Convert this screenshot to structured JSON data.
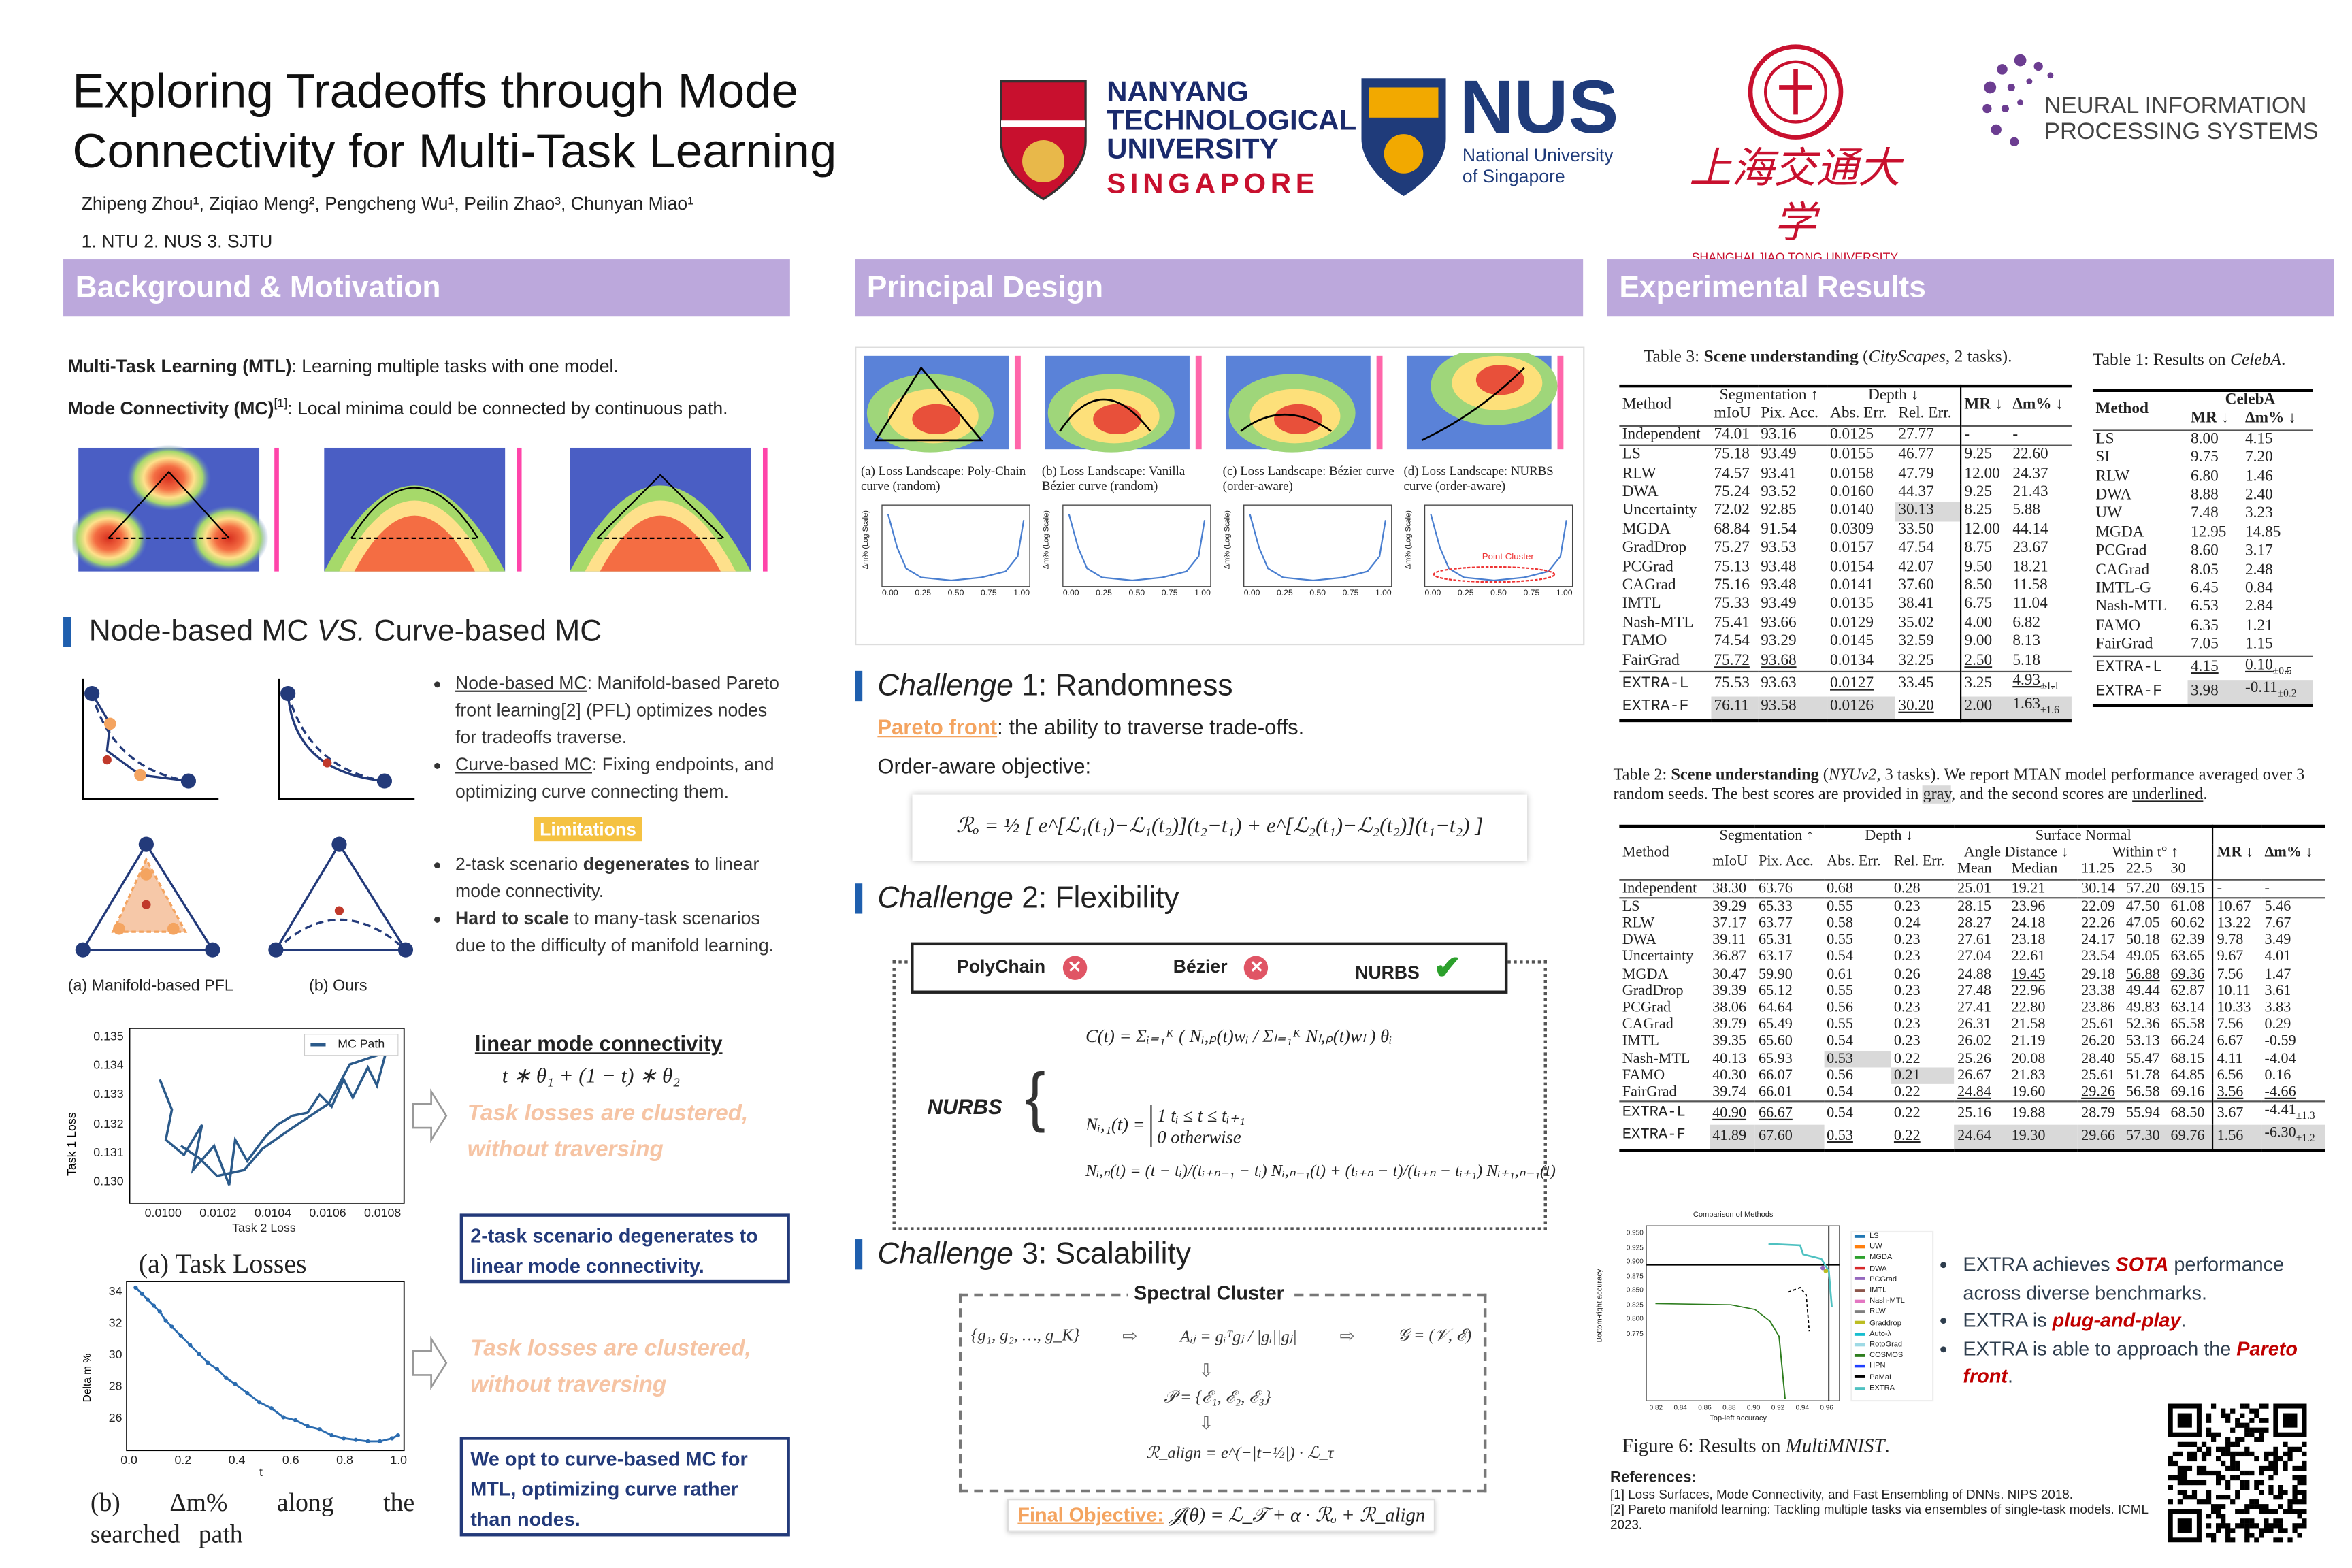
{
  "header": {
    "title_line1": "Exploring Tradeoffs through Mode",
    "title_line2": "Connectivity for Multi-Task Learning",
    "authors": "Zhipeng Zhou¹, Ziqiao Meng², Pengcheng Wu¹, Peilin Zhao³, Chunyan Miao¹",
    "affiliations": "1. NTU   2. NUS  3. SJTU",
    "logos": {
      "ntu": [
        "NANYANG",
        "TECHNOLOGICAL",
        "UNIVERSITY",
        "SINGAPORE"
      ],
      "nus": [
        "NUS",
        "National University",
        "of Singapore"
      ],
      "sjtu": [
        "上海交通大学",
        "SHANGHAI JIAO TONG UNIVERSITY"
      ],
      "neurips": [
        "NEURAL INFORMATION",
        "PROCESSING SYSTEMS"
      ]
    }
  },
  "sections": {
    "background": "Background & Motivation",
    "design": "Principal Design",
    "results": "Experimental Results"
  },
  "background": {
    "mtl_term": "Multi-Task Learning (MTL)",
    "mtl_def": ": Learning multiple tasks with one model.",
    "mc_term": "Mode Connectivity (MC)",
    "mc_ref": "[1]",
    "mc_def": ": Local minima could be connected by continuous path.",
    "subheading_a": "Node-based MC ",
    "subheading_vs": "VS.",
    "subheading_b": " Curve-based MC",
    "bullets": [
      {
        "term": "Node-based MC",
        "text": ": Manifold-based Pareto front learning[2] (PFL) optimizes nodes for tradeoffs traverse."
      },
      {
        "term": "Curve-based MC",
        "text": ": Fixing endpoints, and optimizing curve connecting them."
      }
    ],
    "limitations_label": "Limitations",
    "limitations": [
      {
        "pre": "2-task scenario ",
        "bold": "degenerates",
        "post": " to linear mode connectivity."
      },
      {
        "pre": "",
        "bold": "Hard to scale",
        "post": " to many-task scenarios due to the difficulty of manifold learning."
      }
    ],
    "diagram_captions": [
      "(a) Manifold-based PFL",
      "(b) Ours"
    ],
    "linear_mc_title": "linear mode connectivity",
    "linear_mc_formula": "t ∗ θ₁ + (1 − t) ∗ θ₂",
    "clustered_1": "Task losses are clustered,",
    "clustered_2": "without traversing",
    "box1": "2-task scenario degenerates to linear mode connectivity.",
    "box2": "We opt to curve-based MC for MTL, optimizing curve rather than nodes.",
    "task_loss_chart": {
      "caption": "(a) Task Losses",
      "legend": "MC Path",
      "xlabel": "Task 2 Loss",
      "ylabel": "Task 1 Loss",
      "xticks": [
        "0.0100",
        "0.0102",
        "0.0104",
        "0.0106",
        "0.0108"
      ],
      "yticks": [
        "0.135",
        "0.134",
        "0.133",
        "0.132",
        "0.131",
        "0.130"
      ]
    },
    "delta_chart": {
      "caption": "(b)   Δm%   along   the searched path",
      "xlabel": "t",
      "ylabel": "Delta m %",
      "xticks": [
        "0.0",
        "0.2",
        "0.4",
        "0.6",
        "0.8",
        "1.0"
      ],
      "yticks": [
        "34",
        "32",
        "30",
        "28",
        "26"
      ]
    }
  },
  "design": {
    "fig_captions": [
      "(a) Loss Landscape: Poly-Chain curve (random)",
      "(b) Loss Landscape: Vanilla Bézier curve (random)",
      "(c) Loss Landscape: Bézier curve (order-aware)",
      "(d) Loss Landscape: NURBS curve (order-aware)"
    ],
    "point_cluster_label": "Point Cluster",
    "mini_ylabel": "Δm% (Log Scale)",
    "mini_xticks": [
      "0.00",
      "0.25",
      "0.50",
      "0.75",
      "1.00"
    ],
    "challenge1_word": "Challenge",
    "challenge1": " 1: Randomness",
    "pareto_term": "Pareto front",
    "pareto_def": ": the ability to traverse trade-offs.",
    "order_aware": "Order-aware objective:",
    "order_formula": "ℛₒ = ½ [ e^[ℒ₁(t₁)−ℒ₁(t₂)](t₂−t₁) + e^[ℒ₂(t₁)−ℒ₂(t₂)](t₁−t₂) ]",
    "challenge2": " 2: Flexibility",
    "curve_types": [
      {
        "name": "PolyChain",
        "ok": false
      },
      {
        "name": "Bézier",
        "ok": false
      },
      {
        "name": "NURBS",
        "ok": true
      }
    ],
    "nurbs_label": "NURBS",
    "nurbs_f1": "C(t) = Σᵢ₌₁ᴷ ( Nᵢ,ₚ(t)wᵢ / Σₗ₌₁ᴷ Nₗ,ₚ(t)wₗ ) θᵢ",
    "nurbs_f2a": "Nᵢ,₁(t) = ",
    "nurbs_f2b": "1    tᵢ ≤ t ≤ tᵢ₊₁",
    "nurbs_f2c": "0    otherwise",
    "nurbs_f3": "Nᵢ,ₙ(t) = (t − tᵢ)/(tᵢ₊ₙ₋₁ − tᵢ) Nᵢ,ₙ₋₁(t) + (tᵢ₊ₙ − t)/(tᵢ₊ₙ − tᵢ₊₁) Nᵢ₊₁,ₙ₋₁(t)",
    "challenge3": " 3: Scalability",
    "spectral_title": "Spectral Cluster",
    "spec_g": "{g₁, g₂, …, g_K}",
    "spec_a": "Aᵢⱼ = gᵢᵀgⱼ / |gᵢ||gⱼ|",
    "spec_graph": "𝒢 = (𝒱, ℰ)",
    "spec_p": "𝒫 = {ℰ₁, ℰ₂, ℰ₃}",
    "spec_r": "ℛ_align = e^(−|t−½|) · ℒ_τ",
    "final_label": "Final Objective:",
    "final_formula": "𝒥(θ) = ℒ_𝒯 + α · ℛₒ + ℛ_align"
  },
  "table3": {
    "caption_pre": "Table 3: ",
    "caption_bold": "Scene understanding",
    "caption_it": "CityScapes",
    "caption_post": ", 2 tasks).",
    "h_method": "Method",
    "h_seg": "Segmentation ↑",
    "h_depth": "Depth ↓",
    "h_mr": "MR ↓",
    "h_dm": "Δm% ↓",
    "sub": [
      "mIoU",
      "Pix. Acc.",
      "Abs. Err.",
      "Rel. Err."
    ],
    "independent": [
      "Independent",
      "74.01",
      "93.16",
      "0.0125",
      "27.77",
      "-",
      "-"
    ],
    "rows": [
      [
        "LS",
        "75.18",
        "93.49",
        "0.0155",
        "46.77",
        "9.25",
        "22.60"
      ],
      [
        "RLW",
        "74.57",
        "93.41",
        "0.0158",
        "47.79",
        "12.00",
        "24.37"
      ],
      [
        "DWA",
        "75.24",
        "93.52",
        "0.0160",
        "44.37",
        "9.25",
        "21.43"
      ],
      [
        "Uncertainty",
        "72.02",
        "92.85",
        "0.0140",
        "30.13",
        "8.25",
        "5.88"
      ],
      [
        "MGDA",
        "68.84",
        "91.54",
        "0.0309",
        "33.50",
        "12.00",
        "44.14"
      ],
      [
        "GradDrop",
        "75.27",
        "93.53",
        "0.0157",
        "47.54",
        "8.75",
        "23.67"
      ],
      [
        "PCGrad",
        "75.13",
        "93.48",
        "0.0154",
        "42.07",
        "9.50",
        "18.21"
      ],
      [
        "CAGrad",
        "75.16",
        "93.48",
        "0.0141",
        "37.60",
        "8.50",
        "11.58"
      ],
      [
        "IMTL",
        "75.33",
        "93.49",
        "0.0135",
        "38.41",
        "6.75",
        "11.04"
      ],
      [
        "Nash-MTL",
        "75.41",
        "93.66",
        "0.0129",
        "35.02",
        "4.00",
        "6.82"
      ],
      [
        "FAMO",
        "74.54",
        "93.29",
        "0.0145",
        "32.59",
        "9.00",
        "8.13"
      ],
      [
        "FairGrad",
        "75.72",
        "93.68",
        "0.0134",
        "32.25",
        "2.50",
        "5.18"
      ]
    ],
    "ours": [
      [
        "EXTRA-L",
        "75.53",
        "93.63",
        "0.0127",
        "33.45",
        "3.25",
        "4.93",
        "±1.1"
      ],
      [
        "EXTRA-F",
        "76.11",
        "93.58",
        "0.0126",
        "30.20",
        "2.00",
        "1.63",
        "±1.6"
      ]
    ]
  },
  "table1": {
    "caption_pre": "Table 1: Results on ",
    "caption_it": "CelebA",
    "caption_post": ".",
    "h_method": "Method",
    "h_group": "CelebA",
    "h_mr": "MR ↓",
    "h_dm": "Δm% ↓",
    "rows": [
      [
        "LS",
        "8.00",
        "4.15"
      ],
      [
        "SI",
        "9.75",
        "7.20"
      ],
      [
        "RLW",
        "6.80",
        "1.46"
      ],
      [
        "DWA",
        "8.88",
        "2.40"
      ],
      [
        "UW",
        "7.48",
        "3.23"
      ],
      [
        "MGDA",
        "12.95",
        "14.85"
      ],
      [
        "PCGrad",
        "8.60",
        "3.17"
      ],
      [
        "CAGrad",
        "8.05",
        "2.48"
      ],
      [
        "IMTL-G",
        "6.45",
        "0.84"
      ],
      [
        "Nash-MTL",
        "6.53",
        "2.84"
      ],
      [
        "FAMO",
        "6.35",
        "1.21"
      ],
      [
        "FairGrad",
        "7.05",
        "1.15"
      ]
    ],
    "ours": [
      [
        "EXTRA-L",
        "4.15",
        "0.10",
        "±0.5"
      ],
      [
        "EXTRA-F",
        "3.98",
        "-0.11",
        "±0.2"
      ]
    ]
  },
  "table2": {
    "caption_pre": "Table 2: ",
    "caption_bold": "Scene understanding",
    "caption_it": "NYUv2",
    "caption_mid": ", 3 tasks). We report MTAN model performance averaged over 3 random seeds. The best scores are provided in ",
    "caption_gray": "gray",
    "caption_mid2": ", and the second scores are ",
    "caption_ul": "underlined",
    "caption_end": ".",
    "h_method": "Method",
    "h_seg": "Segmentation ↑",
    "h_depth": "Depth ↓",
    "h_sn": "Surface Normal",
    "h_angle": "Angle Distance ↓",
    "h_within": "Within t° ↑",
    "h_mr": "MR ↓",
    "h_dm": "Δm% ↓",
    "sub": [
      "mIoU",
      "Pix. Acc.",
      "Abs. Err.",
      "Rel. Err.",
      "Mean",
      "Median",
      "11.25",
      "22.5",
      "30"
    ],
    "independent": [
      "Independent",
      "38.30",
      "63.76",
      "0.68",
      "0.28",
      "25.01",
      "19.21",
      "30.14",
      "57.20",
      "69.15",
      "-",
      "-"
    ],
    "rows": [
      [
        "LS",
        "39.29",
        "65.33",
        "0.55",
        "0.23",
        "28.15",
        "23.96",
        "22.09",
        "47.50",
        "61.08",
        "10.67",
        "5.46"
      ],
      [
        "RLW",
        "37.17",
        "63.77",
        "0.58",
        "0.24",
        "28.27",
        "24.18",
        "22.26",
        "47.05",
        "60.62",
        "13.22",
        "7.67"
      ],
      [
        "DWA",
        "39.11",
        "65.31",
        "0.55",
        "0.23",
        "27.61",
        "23.18",
        "24.17",
        "50.18",
        "62.39",
        "9.78",
        "3.49"
      ],
      [
        "Uncertainty",
        "36.87",
        "63.17",
        "0.54",
        "0.23",
        "27.04",
        "22.61",
        "23.54",
        "49.05",
        "63.65",
        "9.67",
        "4.01"
      ],
      [
        "MGDA",
        "30.47",
        "59.90",
        "0.61",
        "0.26",
        "24.88",
        "19.45",
        "29.18",
        "56.88",
        "69.36",
        "7.56",
        "1.47"
      ],
      [
        "GradDrop",
        "39.39",
        "65.12",
        "0.55",
        "0.23",
        "27.48",
        "22.96",
        "23.38",
        "49.44",
        "62.87",
        "10.11",
        "3.61"
      ],
      [
        "PCGrad",
        "38.06",
        "64.64",
        "0.56",
        "0.23",
        "27.41",
        "22.80",
        "23.86",
        "49.83",
        "63.14",
        "10.33",
        "3.83"
      ],
      [
        "CAGrad",
        "39.79",
        "65.49",
        "0.55",
        "0.23",
        "26.31",
        "21.58",
        "25.61",
        "52.36",
        "65.58",
        "7.56",
        "0.29"
      ],
      [
        "IMTL",
        "39.35",
        "65.60",
        "0.54",
        "0.23",
        "26.02",
        "21.19",
        "26.20",
        "53.13",
        "66.24",
        "6.67",
        "-0.59"
      ],
      [
        "Nash-MTL",
        "40.13",
        "65.93",
        "0.53",
        "0.22",
        "25.26",
        "20.08",
        "28.40",
        "55.47",
        "68.15",
        "4.11",
        "-4.04"
      ],
      [
        "FAMO",
        "40.30",
        "66.07",
        "0.56",
        "0.21",
        "26.67",
        "21.83",
        "25.61",
        "51.78",
        "64.85",
        "6.56",
        "0.16"
      ],
      [
        "FairGrad",
        "39.74",
        "66.01",
        "0.54",
        "0.22",
        "24.84",
        "19.60",
        "29.26",
        "56.58",
        "69.16",
        "3.56",
        "-4.66"
      ]
    ],
    "ours": [
      [
        "EXTRA-L",
        "40.90",
        "66.67",
        "0.54",
        "0.22",
        "25.16",
        "19.88",
        "28.79",
        "55.94",
        "68.50",
        "3.67",
        "-4.41",
        "±1.3"
      ],
      [
        "EXTRA-F",
        "41.89",
        "67.60",
        "0.53",
        "0.22",
        "24.64",
        "19.30",
        "29.66",
        "57.30",
        "69.76",
        "1.56",
        "-6.30",
        "±1.2"
      ]
    ]
  },
  "mnist_chart": {
    "title": "Comparison of Methods",
    "xlabel": "Top-left accuracy",
    "ylabel": "Bottom-right accuracy",
    "xticks": [
      "0.82",
      "0.84",
      "0.86",
      "0.88",
      "0.90",
      "0.92",
      "0.94",
      "0.96"
    ],
    "yticks": [
      "0.950",
      "0.925",
      "0.900",
      "0.875",
      "0.850",
      "0.825",
      "0.800",
      "0.775"
    ],
    "legend": [
      {
        "name": "LS",
        "color": "#1f77b4"
      },
      {
        "name": "UW",
        "color": "#ff7f0e"
      },
      {
        "name": "MGDA",
        "color": "#2ca02c"
      },
      {
        "name": "DWA",
        "color": "#d62728"
      },
      {
        "name": "PCGrad",
        "color": "#9467bd"
      },
      {
        "name": "IMTL",
        "color": "#8c564b"
      },
      {
        "name": "Nash-MTL",
        "color": "#e377c2"
      },
      {
        "name": "RLW",
        "color": "#7f7f7f"
      },
      {
        "name": "Graddrop",
        "color": "#bcbd22"
      },
      {
        "name": "Auto-λ",
        "color": "#17becf"
      },
      {
        "name": "RotoGrad",
        "color": "#9edae5"
      },
      {
        "name": "COSMOS",
        "color": "#2e7d1e"
      },
      {
        "name": "HPN",
        "color": "#1f3fff"
      },
      {
        "name": "PaMaL",
        "color": "#000000"
      },
      {
        "name": "EXTRA",
        "color": "#4fc1c1"
      }
    ],
    "caption_pre": "Figure 6: Results on ",
    "caption_it": "MultiMNIST",
    "caption_post": "."
  },
  "results_bullets": [
    {
      "pre": "EXTRA achieves ",
      "em": "SOTA",
      "post": " performance across diverse benchmarks."
    },
    {
      "pre": "EXTRA is ",
      "em": "plug-and-play",
      "post": "."
    },
    {
      "pre": "EXTRA is able to approach the ",
      "em": "Pareto front",
      "post": "."
    }
  ],
  "references": {
    "title": "References:",
    "items": [
      "[1] Loss Surfaces, Mode Connectivity, and Fast Ensembling of DNNs. NIPS 2018.",
      "[2] Pareto manifold learning: Tackling multiple tasks via ensembles of single-task models. ICML 2023."
    ]
  },
  "colors": {
    "section": "#bca8dc",
    "accent_blue": "#1f5fae",
    "navy": "#233a7a",
    "highlight_red": "#c00000",
    "limitations": "#f5c242"
  }
}
